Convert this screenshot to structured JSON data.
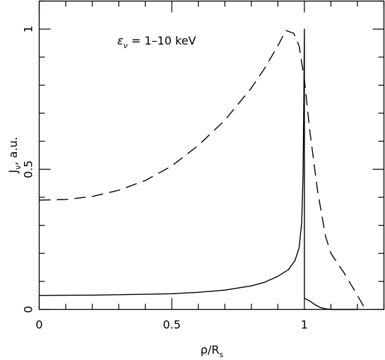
{
  "chart_data": {
    "type": "line",
    "xlabel": "ρ/R",
    "xlabel_sub": "s",
    "ylabel": "J",
    "ylabel_sub": "ν",
    "ylabel_suffix": ", a.u.",
    "annotation": {
      "symbol": "ε",
      "symbol_sub": "ν",
      "text": " = 1–10 keV"
    },
    "xlim": [
      0,
      1.3
    ],
    "ylim": [
      0,
      1.1
    ],
    "x_ticks": [
      {
        "value": 0,
        "label": "0"
      },
      {
        "value": 0.5,
        "label": "0.5"
      },
      {
        "value": 1,
        "label": "1"
      }
    ],
    "y_ticks": [
      {
        "value": 0,
        "label": "0"
      },
      {
        "value": 0.5,
        "label": "0.5"
      },
      {
        "value": 1,
        "label": "1"
      }
    ],
    "x_minor_step": 0.1,
    "y_minor_step": 0.1,
    "grid": false,
    "series": [
      {
        "style": "solid",
        "points": [
          [
            0,
            0.05
          ],
          [
            0.2,
            0.051
          ],
          [
            0.4,
            0.054
          ],
          [
            0.5,
            0.056
          ],
          [
            0.6,
            0.061
          ],
          [
            0.7,
            0.069
          ],
          [
            0.8,
            0.084
          ],
          [
            0.85,
            0.097
          ],
          [
            0.9,
            0.118
          ],
          [
            0.94,
            0.142
          ],
          [
            0.965,
            0.175
          ],
          [
            0.98,
            0.22
          ],
          [
            0.99,
            0.31
          ],
          [
            0.995,
            0.48
          ],
          [
            0.998,
            0.75
          ],
          [
            1.0,
            1.0
          ],
          [
            1.0,
            0.04
          ],
          [
            1.02,
            0.03
          ],
          [
            1.04,
            0.017
          ],
          [
            1.06,
            0.007
          ],
          [
            1.08,
            0.002
          ],
          [
            1.1,
            0.0
          ],
          [
            1.2,
            0.0
          ]
        ]
      },
      {
        "style": "dashed",
        "points": [
          [
            0,
            0.39
          ],
          [
            0.1,
            0.392
          ],
          [
            0.2,
            0.403
          ],
          [
            0.3,
            0.425
          ],
          [
            0.4,
            0.46
          ],
          [
            0.5,
            0.512
          ],
          [
            0.6,
            0.585
          ],
          [
            0.7,
            0.675
          ],
          [
            0.8,
            0.79
          ],
          [
            0.85,
            0.86
          ],
          [
            0.9,
            0.94
          ],
          [
            0.93,
            0.995
          ],
          [
            0.96,
            0.985
          ],
          [
            0.98,
            0.94
          ],
          [
            1.0,
            0.82
          ],
          [
            1.02,
            0.64
          ],
          [
            1.05,
            0.42
          ],
          [
            1.08,
            0.26
          ],
          [
            1.1,
            0.2
          ],
          [
            1.15,
            0.13
          ],
          [
            1.2,
            0.05
          ],
          [
            1.23,
            0.0
          ]
        ]
      }
    ]
  }
}
